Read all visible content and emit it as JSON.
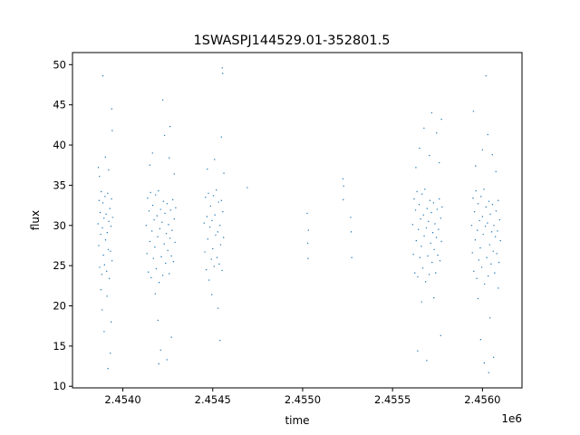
{
  "chart_data": {
    "type": "scatter",
    "title": "1SWASPJ144529.01-352801.5",
    "xlabel": "time",
    "ylabel": "flux",
    "x_offset_label": "1e6",
    "xlim": [
      2453720,
      2456220
    ],
    "ylim": [
      9.8,
      51.5
    ],
    "xticks": [
      2.454,
      2.4545,
      2.455,
      2.4555,
      2.456
    ],
    "xtick_labels": [
      "2.4540",
      "2.4545",
      "2.4550",
      "2.4555",
      "2.4560"
    ],
    "yticks": [
      10,
      15,
      20,
      25,
      30,
      35,
      40,
      45,
      50
    ],
    "ytick_labels": [
      "10",
      "15",
      "20",
      "25",
      "30",
      "35",
      "40",
      "45",
      "50"
    ],
    "grid": false,
    "color": "#1f77b4",
    "points": [
      [
        2453862,
        30.2
      ],
      [
        2453866,
        27.5
      ],
      [
        2453868,
        33.1
      ],
      [
        2453871,
        24.8
      ],
      [
        2453874,
        31.6
      ],
      [
        2453877,
        28.9
      ],
      [
        2453880,
        34.2
      ],
      [
        2453883,
        23.9
      ],
      [
        2453886,
        29.7
      ],
      [
        2453889,
        32.8
      ],
      [
        2453892,
        26.3
      ],
      [
        2453895,
        30.9
      ],
      [
        2453898,
        25.1
      ],
      [
        2453901,
        33.6
      ],
      [
        2453904,
        28.2
      ],
      [
        2453907,
        31.4
      ],
      [
        2453910,
        24.3
      ],
      [
        2453913,
        29.1
      ],
      [
        2453916,
        34.0
      ],
      [
        2453919,
        27.0
      ],
      [
        2453922,
        30.5
      ],
      [
        2453925,
        23.4
      ],
      [
        2453928,
        32.1
      ],
      [
        2453931,
        26.8
      ],
      [
        2453934,
        29.9
      ],
      [
        2453937,
        33.3
      ],
      [
        2453940,
        25.6
      ],
      [
        2453943,
        31.0
      ],
      [
        2453864,
        37.2
      ],
      [
        2453870,
        36.1
      ],
      [
        2453878,
        22.0
      ],
      [
        2453885,
        19.5
      ],
      [
        2453896,
        16.8
      ],
      [
        2453903,
        38.5
      ],
      [
        2453912,
        21.2
      ],
      [
        2453921,
        36.9
      ],
      [
        2453930,
        14.1
      ],
      [
        2453938,
        44.5
      ],
      [
        2453941,
        41.8
      ],
      [
        2453889,
        48.6
      ],
      [
        2453917,
        12.2
      ],
      [
        2453935,
        18.0
      ],
      [
        2454130,
        30.0
      ],
      [
        2454134,
        26.5
      ],
      [
        2454138,
        33.4
      ],
      [
        2454142,
        24.2
      ],
      [
        2454146,
        31.8
      ],
      [
        2454150,
        28.0
      ],
      [
        2454154,
        34.1
      ],
      [
        2454158,
        23.5
      ],
      [
        2454162,
        29.3
      ],
      [
        2454166,
        32.5
      ],
      [
        2454170,
        25.9
      ],
      [
        2454174,
        30.7
      ],
      [
        2454178,
        27.3
      ],
      [
        2454182,
        33.8
      ],
      [
        2454186,
        24.6
      ],
      [
        2454190,
        31.2
      ],
      [
        2454194,
        28.6
      ],
      [
        2454198,
        34.3
      ],
      [
        2454202,
        22.9
      ],
      [
        2454206,
        29.6
      ],
      [
        2454210,
        32.0
      ],
      [
        2454214,
        26.1
      ],
      [
        2454218,
        30.4
      ],
      [
        2454222,
        23.8
      ],
      [
        2454226,
        33.0
      ],
      [
        2454230,
        27.7
      ],
      [
        2454234,
        31.5
      ],
      [
        2454238,
        25.3
      ],
      [
        2454242,
        29.0
      ],
      [
        2454246,
        32.7
      ],
      [
        2454250,
        26.9
      ],
      [
        2454254,
        30.1
      ],
      [
        2454258,
        24.0
      ],
      [
        2454262,
        28.4
      ],
      [
        2454266,
        31.9
      ],
      [
        2454270,
        26.2
      ],
      [
        2454274,
        29.4
      ],
      [
        2454278,
        33.2
      ],
      [
        2454282,
        25.5
      ],
      [
        2454286,
        30.8
      ],
      [
        2454290,
        27.9
      ],
      [
        2454294,
        32.2
      ],
      [
        2454150,
        37.5
      ],
      [
        2454165,
        39.0
      ],
      [
        2454180,
        21.5
      ],
      [
        2454195,
        18.2
      ],
      [
        2454210,
        14.5
      ],
      [
        2454222,
        45.6
      ],
      [
        2454232,
        41.2
      ],
      [
        2454245,
        13.3
      ],
      [
        2454258,
        38.4
      ],
      [
        2454270,
        16.1
      ],
      [
        2454286,
        36.4
      ],
      [
        2454200,
        12.8
      ],
      [
        2454262,
        42.3
      ],
      [
        2454452,
        30.3
      ],
      [
        2454456,
        26.7
      ],
      [
        2454460,
        33.5
      ],
      [
        2454464,
        24.5
      ],
      [
        2454468,
        31.1
      ],
      [
        2454472,
        28.3
      ],
      [
        2454476,
        34.0
      ],
      [
        2454480,
        23.2
      ],
      [
        2454484,
        29.8
      ],
      [
        2454488,
        32.4
      ],
      [
        2454492,
        25.8
      ],
      [
        2454496,
        30.6
      ],
      [
        2454500,
        27.1
      ],
      [
        2454504,
        33.7
      ],
      [
        2454508,
        24.9
      ],
      [
        2454512,
        31.3
      ],
      [
        2454516,
        28.8
      ],
      [
        2454520,
        34.4
      ],
      [
        2454524,
        26.0
      ],
      [
        2454528,
        29.2
      ],
      [
        2454532,
        32.9
      ],
      [
        2454536,
        25.2
      ],
      [
        2454540,
        30.0
      ],
      [
        2454544,
        27.6
      ],
      [
        2454548,
        33.1
      ],
      [
        2454552,
        24.4
      ],
      [
        2454556,
        31.7
      ],
      [
        2454560,
        28.5
      ],
      [
        2454470,
        37.0
      ],
      [
        2454495,
        21.4
      ],
      [
        2454510,
        38.2
      ],
      [
        2454530,
        19.7
      ],
      [
        2454548,
        41.0
      ],
      [
        2454555,
        48.9
      ],
      [
        2454553,
        49.6
      ],
      [
        2454540,
        15.7
      ],
      [
        2454562,
        36.5
      ],
      [
        2454692,
        34.7
      ],
      [
        2455025,
        31.5
      ],
      [
        2455028,
        27.8
      ],
      [
        2455030,
        25.9
      ],
      [
        2455032,
        29.4
      ],
      [
        2455224,
        35.8
      ],
      [
        2455226,
        33.2
      ],
      [
        2455228,
        34.9
      ],
      [
        2455267,
        31.0
      ],
      [
        2455270,
        29.2
      ],
      [
        2455273,
        26.0
      ],
      [
        2455612,
        30.1
      ],
      [
        2455616,
        26.4
      ],
      [
        2455620,
        33.3
      ],
      [
        2455624,
        24.1
      ],
      [
        2455628,
        31.9
      ],
      [
        2455632,
        28.1
      ],
      [
        2455636,
        34.2
      ],
      [
        2455640,
        23.6
      ],
      [
        2455644,
        29.5
      ],
      [
        2455648,
        32.6
      ],
      [
        2455652,
        26.0
      ],
      [
        2455656,
        30.8
      ],
      [
        2455660,
        27.4
      ],
      [
        2455664,
        33.9
      ],
      [
        2455668,
        24.7
      ],
      [
        2455672,
        31.3
      ],
      [
        2455676,
        28.7
      ],
      [
        2455680,
        34.5
      ],
      [
        2455684,
        23.0
      ],
      [
        2455688,
        29.7
      ],
      [
        2455692,
        32.1
      ],
      [
        2455696,
        26.2
      ],
      [
        2455700,
        30.5
      ],
      [
        2455704,
        23.9
      ],
      [
        2455708,
        33.1
      ],
      [
        2455712,
        27.8
      ],
      [
        2455716,
        31.6
      ],
      [
        2455720,
        25.4
      ],
      [
        2455724,
        29.1
      ],
      [
        2455728,
        32.8
      ],
      [
        2455732,
        27.0
      ],
      [
        2455736,
        30.2
      ],
      [
        2455740,
        24.1
      ],
      [
        2455744,
        28.5
      ],
      [
        2455748,
        32.0
      ],
      [
        2455752,
        26.3
      ],
      [
        2455756,
        29.5
      ],
      [
        2455760,
        33.3
      ],
      [
        2455764,
        25.6
      ],
      [
        2455768,
        30.9
      ],
      [
        2455772,
        28.0
      ],
      [
        2455776,
        32.3
      ],
      [
        2455630,
        37.2
      ],
      [
        2455650,
        39.6
      ],
      [
        2455662,
        20.5
      ],
      [
        2455675,
        42.1
      ],
      [
        2455640,
        14.4
      ],
      [
        2455690,
        13.2
      ],
      [
        2455705,
        38.7
      ],
      [
        2455718,
        44.0
      ],
      [
        2455730,
        21.0
      ],
      [
        2455745,
        41.5
      ],
      [
        2455760,
        37.8
      ],
      [
        2455768,
        16.3
      ],
      [
        2455772,
        43.2
      ],
      [
        2455940,
        30.0
      ],
      [
        2455944,
        26.6
      ],
      [
        2455948,
        33.4
      ],
      [
        2455952,
        24.3
      ],
      [
        2455956,
        31.7
      ],
      [
        2455960,
        28.2
      ],
      [
        2455964,
        34.3
      ],
      [
        2455968,
        23.4
      ],
      [
        2455972,
        29.4
      ],
      [
        2455976,
        32.7
      ],
      [
        2455980,
        25.7
      ],
      [
        2455984,
        30.6
      ],
      [
        2455988,
        27.2
      ],
      [
        2455992,
        33.6
      ],
      [
        2455996,
        24.8
      ],
      [
        2456000,
        31.1
      ],
      [
        2456004,
        28.9
      ],
      [
        2456008,
        34.5
      ],
      [
        2456012,
        22.7
      ],
      [
        2456016,
        29.9
      ],
      [
        2456020,
        32.3
      ],
      [
        2456024,
        26.0
      ],
      [
        2456028,
        30.3
      ],
      [
        2456032,
        23.7
      ],
      [
        2456036,
        33.0
      ],
      [
        2456040,
        27.6
      ],
      [
        2456044,
        31.4
      ],
      [
        2456048,
        25.2
      ],
      [
        2456052,
        29.2
      ],
      [
        2456056,
        32.6
      ],
      [
        2456060,
        26.8
      ],
      [
        2456064,
        30.0
      ],
      [
        2456068,
        24.1
      ],
      [
        2456072,
        28.6
      ],
      [
        2456076,
        31.8
      ],
      [
        2456080,
        26.5
      ],
      [
        2456084,
        29.3
      ],
      [
        2456088,
        33.1
      ],
      [
        2456092,
        25.4
      ],
      [
        2456096,
        30.7
      ],
      [
        2456100,
        28.1
      ],
      [
        2455950,
        44.2
      ],
      [
        2455962,
        37.4
      ],
      [
        2455975,
        20.9
      ],
      [
        2455990,
        15.8
      ],
      [
        2456000,
        39.4
      ],
      [
        2456010,
        12.9
      ],
      [
        2456020,
        48.6
      ],
      [
        2456030,
        41.3
      ],
      [
        2456042,
        18.5
      ],
      [
        2456055,
        38.8
      ],
      [
        2456062,
        13.6
      ],
      [
        2456075,
        36.7
      ],
      [
        2456088,
        22.2
      ],
      [
        2456035,
        11.7
      ]
    ]
  }
}
